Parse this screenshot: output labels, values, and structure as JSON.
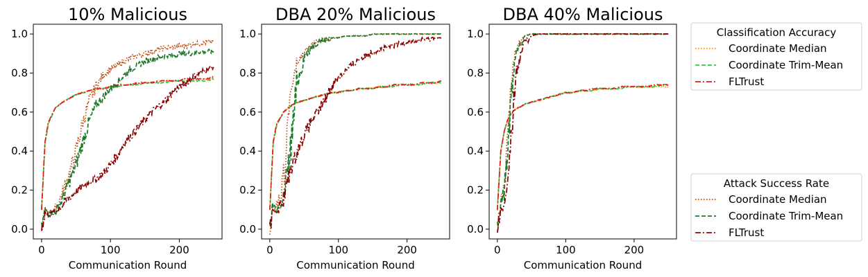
{
  "colors": {
    "acc_median": "#ff8c00",
    "acc_trim": "#2ecc40",
    "acc_fltrust": "#e31a1c",
    "asr_median": "#c04a10",
    "asr_trim": "#1a7a2a",
    "asr_fltrust": "#8b0000"
  },
  "legends": [
    {
      "title": "Classification Accuracy",
      "entries": [
        {
          "label": "Coordinate Median",
          "style": "dotted",
          "color": "#ff8c00"
        },
        {
          "label": "Coordinate Trim-Mean",
          "style": "dashed",
          "color": "#2ecc40"
        },
        {
          "label": "FLTrust",
          "style": "dashdot",
          "color": "#e31a1c"
        }
      ]
    },
    {
      "title": "Attack Success Rate",
      "entries": [
        {
          "label": "Coordinate Median",
          "style": "dotted",
          "color": "#c04a10"
        },
        {
          "label": "Coordinate Trim-Mean",
          "style": "dashed",
          "color": "#1a7a2a"
        },
        {
          "label": "FLTrust",
          "style": "dashdot",
          "color": "#8b0000"
        }
      ]
    }
  ],
  "chart_data": [
    {
      "type": "line",
      "title": "10% Malicious",
      "xlabel": "Communication Round",
      "ylabel": "",
      "xlim": [
        -12,
        262
      ],
      "ylim": [
        -0.05,
        1.05
      ],
      "xticks": [
        0,
        100,
        200
      ],
      "yticks": [
        0.0,
        0.2,
        0.4,
        0.6,
        0.8,
        1.0
      ],
      "x": [
        0,
        5,
        10,
        20,
        30,
        40,
        50,
        60,
        70,
        80,
        90,
        100,
        110,
        120,
        130,
        140,
        150,
        160,
        170,
        180,
        190,
        200,
        210,
        220,
        230,
        240,
        250
      ],
      "series": [
        {
          "name": "Coordinate Median",
          "group": "Classification Accuracy",
          "style": "dotted",
          "values": [
            0.1,
            0.45,
            0.55,
            0.62,
            0.65,
            0.67,
            0.69,
            0.7,
            0.71,
            0.72,
            0.72,
            0.73,
            0.73,
            0.74,
            0.74,
            0.74,
            0.75,
            0.75,
            0.75,
            0.76,
            0.76,
            0.76,
            0.76,
            0.76,
            0.77,
            0.77,
            0.77
          ]
        },
        {
          "name": "Coordinate Trim-Mean",
          "group": "Classification Accuracy",
          "style": "dashed",
          "values": [
            0.1,
            0.44,
            0.54,
            0.62,
            0.65,
            0.67,
            0.69,
            0.7,
            0.71,
            0.72,
            0.72,
            0.73,
            0.73,
            0.74,
            0.74,
            0.74,
            0.75,
            0.75,
            0.75,
            0.75,
            0.76,
            0.76,
            0.76,
            0.76,
            0.76,
            0.76,
            0.77
          ]
        },
        {
          "name": "FLTrust",
          "group": "Classification Accuracy",
          "style": "dashdot",
          "values": [
            0.1,
            0.45,
            0.55,
            0.62,
            0.65,
            0.67,
            0.69,
            0.7,
            0.71,
            0.72,
            0.72,
            0.73,
            0.74,
            0.74,
            0.74,
            0.75,
            0.75,
            0.75,
            0.76,
            0.76,
            0.76,
            0.76,
            0.77,
            0.77,
            0.77,
            0.77,
            0.78
          ]
        },
        {
          "name": "Coordinate Median",
          "group": "Attack Success Rate",
          "style": "dotted",
          "values": [
            0.0,
            0.1,
            0.08,
            0.1,
            0.18,
            0.28,
            0.4,
            0.55,
            0.66,
            0.74,
            0.79,
            0.82,
            0.84,
            0.86,
            0.88,
            0.89,
            0.9,
            0.91,
            0.92,
            0.93,
            0.93,
            0.94,
            0.94,
            0.95,
            0.95,
            0.96,
            0.96
          ]
        },
        {
          "name": "Coordinate Trim-Mean",
          "group": "Attack Success Rate",
          "style": "dashed",
          "values": [
            0.0,
            0.1,
            0.08,
            0.09,
            0.15,
            0.24,
            0.33,
            0.45,
            0.56,
            0.64,
            0.68,
            0.72,
            0.75,
            0.79,
            0.82,
            0.84,
            0.86,
            0.87,
            0.88,
            0.89,
            0.89,
            0.9,
            0.9,
            0.9,
            0.91,
            0.91,
            0.91
          ]
        },
        {
          "name": "FLTrust",
          "group": "Attack Success Rate",
          "style": "dashdot",
          "values": [
            0.0,
            0.09,
            0.07,
            0.09,
            0.12,
            0.16,
            0.19,
            0.22,
            0.24,
            0.26,
            0.29,
            0.33,
            0.38,
            0.44,
            0.48,
            0.52,
            0.56,
            0.6,
            0.63,
            0.66,
            0.7,
            0.73,
            0.75,
            0.78,
            0.8,
            0.82,
            0.83
          ]
        }
      ]
    },
    {
      "type": "line",
      "title": "DBA 20% Malicious",
      "xlabel": "Communication Round",
      "ylabel": "",
      "xlim": [
        -12,
        262
      ],
      "ylim": [
        -0.05,
        1.05
      ],
      "xticks": [
        0,
        100,
        200
      ],
      "yticks": [
        0.0,
        0.2,
        0.4,
        0.6,
        0.8,
        1.0
      ],
      "x": [
        0,
        5,
        10,
        20,
        30,
        40,
        50,
        60,
        70,
        80,
        90,
        100,
        110,
        120,
        130,
        140,
        150,
        160,
        170,
        180,
        190,
        200,
        210,
        220,
        230,
        240,
        250
      ],
      "series": [
        {
          "name": "Coordinate Median",
          "group": "Classification Accuracy",
          "style": "dotted",
          "values": [
            0.1,
            0.45,
            0.54,
            0.6,
            0.63,
            0.65,
            0.66,
            0.67,
            0.68,
            0.69,
            0.7,
            0.7,
            0.71,
            0.71,
            0.72,
            0.72,
            0.72,
            0.73,
            0.73,
            0.73,
            0.74,
            0.74,
            0.74,
            0.74,
            0.75,
            0.75,
            0.75
          ]
        },
        {
          "name": "Coordinate Trim-Mean",
          "group": "Classification Accuracy",
          "style": "dashed",
          "values": [
            0.1,
            0.44,
            0.53,
            0.6,
            0.63,
            0.65,
            0.66,
            0.67,
            0.68,
            0.69,
            0.7,
            0.7,
            0.71,
            0.71,
            0.72,
            0.72,
            0.72,
            0.73,
            0.73,
            0.73,
            0.74,
            0.74,
            0.74,
            0.74,
            0.75,
            0.75,
            0.75
          ]
        },
        {
          "name": "FLTrust",
          "group": "Classification Accuracy",
          "style": "dashdot",
          "values": [
            0.1,
            0.45,
            0.54,
            0.6,
            0.63,
            0.65,
            0.66,
            0.67,
            0.68,
            0.69,
            0.7,
            0.7,
            0.71,
            0.71,
            0.72,
            0.72,
            0.72,
            0.73,
            0.73,
            0.74,
            0.74,
            0.74,
            0.74,
            0.75,
            0.75,
            0.75,
            0.76
          ]
        },
        {
          "name": "Coordinate Median",
          "group": "Attack Success Rate",
          "style": "dotted",
          "values": [
            0.0,
            0.12,
            0.1,
            0.25,
            0.7,
            0.85,
            0.9,
            0.94,
            0.96,
            0.97,
            0.98,
            0.98,
            0.99,
            0.99,
            0.99,
            0.99,
            1.0,
            1.0,
            1.0,
            1.0,
            1.0,
            1.0,
            1.0,
            1.0,
            1.0,
            1.0,
            1.0
          ]
        },
        {
          "name": "Coordinate Trim-Mean",
          "group": "Attack Success Rate",
          "style": "dashed",
          "values": [
            0.0,
            0.12,
            0.1,
            0.15,
            0.4,
            0.75,
            0.88,
            0.93,
            0.96,
            0.97,
            0.98,
            0.98,
            0.99,
            0.99,
            0.99,
            0.99,
            1.0,
            1.0,
            1.0,
            1.0,
            1.0,
            1.0,
            1.0,
            1.0,
            1.0,
            1.0,
            1.0
          ]
        },
        {
          "name": "FLTrust",
          "group": "Attack Success Rate",
          "style": "dashdot",
          "values": [
            0.0,
            0.1,
            0.09,
            0.15,
            0.3,
            0.4,
            0.48,
            0.55,
            0.6,
            0.66,
            0.73,
            0.78,
            0.81,
            0.84,
            0.87,
            0.89,
            0.91,
            0.92,
            0.93,
            0.94,
            0.95,
            0.96,
            0.96,
            0.97,
            0.97,
            0.98,
            0.98
          ]
        }
      ]
    },
    {
      "type": "line",
      "title": "DBA 40% Malicious",
      "xlabel": "Communication Round",
      "ylabel": "",
      "xlim": [
        -12,
        262
      ],
      "ylim": [
        -0.05,
        1.05
      ],
      "xticks": [
        0,
        100,
        200
      ],
      "yticks": [
        0.0,
        0.2,
        0.4,
        0.6,
        0.8,
        1.0
      ],
      "x": [
        0,
        5,
        10,
        15,
        20,
        25,
        30,
        40,
        50,
        60,
        70,
        80,
        90,
        100,
        110,
        120,
        130,
        140,
        150,
        160,
        170,
        180,
        190,
        200,
        210,
        220,
        230,
        240,
        250
      ],
      "series": [
        {
          "name": "Coordinate Median",
          "group": "Classification Accuracy",
          "style": "dotted",
          "values": [
            0.1,
            0.4,
            0.5,
            0.56,
            0.59,
            0.61,
            0.62,
            0.64,
            0.65,
            0.66,
            0.67,
            0.68,
            0.69,
            0.7,
            0.7,
            0.71,
            0.71,
            0.71,
            0.72,
            0.72,
            0.72,
            0.72,
            0.73,
            0.73,
            0.73,
            0.73,
            0.73,
            0.73,
            0.73
          ]
        },
        {
          "name": "Coordinate Trim-Mean",
          "group": "Classification Accuracy",
          "style": "dashed",
          "values": [
            0.1,
            0.4,
            0.5,
            0.56,
            0.59,
            0.61,
            0.62,
            0.64,
            0.65,
            0.66,
            0.67,
            0.68,
            0.69,
            0.7,
            0.7,
            0.71,
            0.71,
            0.71,
            0.72,
            0.72,
            0.72,
            0.72,
            0.73,
            0.73,
            0.73,
            0.73,
            0.73,
            0.74,
            0.74
          ]
        },
        {
          "name": "FLTrust",
          "group": "Classification Accuracy",
          "style": "dashdot",
          "values": [
            0.1,
            0.4,
            0.5,
            0.56,
            0.59,
            0.61,
            0.62,
            0.64,
            0.65,
            0.66,
            0.67,
            0.68,
            0.69,
            0.7,
            0.7,
            0.71,
            0.71,
            0.72,
            0.72,
            0.72,
            0.72,
            0.73,
            0.73,
            0.73,
            0.73,
            0.73,
            0.74,
            0.74,
            0.74
          ]
        },
        {
          "name": "Coordinate Median",
          "group": "Attack Success Rate",
          "style": "dotted",
          "values": [
            0.0,
            0.15,
            0.22,
            0.45,
            0.7,
            0.88,
            0.95,
            0.99,
            1.0,
            1.0,
            1.0,
            1.0,
            1.0,
            1.0,
            1.0,
            1.0,
            1.0,
            1.0,
            1.0,
            1.0,
            1.0,
            1.0,
            1.0,
            1.0,
            1.0,
            1.0,
            1.0,
            1.0,
            1.0
          ]
        },
        {
          "name": "Coordinate Trim-Mean",
          "group": "Attack Success Rate",
          "style": "dashed",
          "values": [
            0.0,
            0.14,
            0.2,
            0.4,
            0.68,
            0.86,
            0.94,
            0.99,
            1.0,
            1.0,
            1.0,
            1.0,
            1.0,
            1.0,
            1.0,
            1.0,
            1.0,
            1.0,
            1.0,
            1.0,
            1.0,
            1.0,
            1.0,
            1.0,
            1.0,
            1.0,
            1.0,
            1.0,
            1.0
          ]
        },
        {
          "name": "FLTrust",
          "group": "Attack Success Rate",
          "style": "dashdot",
          "values": [
            0.0,
            0.1,
            0.12,
            0.2,
            0.45,
            0.7,
            0.85,
            0.96,
            0.99,
            1.0,
            1.0,
            1.0,
            1.0,
            1.0,
            1.0,
            1.0,
            1.0,
            1.0,
            1.0,
            1.0,
            1.0,
            1.0,
            1.0,
            1.0,
            1.0,
            1.0,
            1.0,
            1.0,
            1.0
          ]
        }
      ]
    }
  ]
}
